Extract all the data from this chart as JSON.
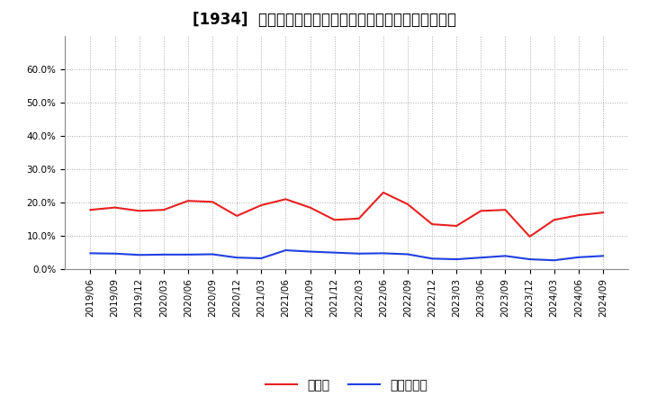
{
  "title": "[1934]  現預金、有利子負債の総資産に対する比率の推移",
  "x_labels": [
    "2019/06",
    "2019/09",
    "2019/12",
    "2020/03",
    "2020/06",
    "2020/09",
    "2020/12",
    "2021/03",
    "2021/06",
    "2021/09",
    "2021/12",
    "2022/03",
    "2022/06",
    "2022/09",
    "2022/12",
    "2023/03",
    "2023/06",
    "2023/09",
    "2023/12",
    "2024/03",
    "2024/06",
    "2024/09"
  ],
  "cash_values": [
    0.178,
    0.185,
    0.175,
    0.178,
    0.205,
    0.202,
    0.16,
    0.192,
    0.21,
    0.185,
    0.148,
    0.152,
    0.23,
    0.195,
    0.135,
    0.13,
    0.175,
    0.178,
    0.098,
    0.148,
    0.162,
    0.17
  ],
  "debt_values": [
    0.048,
    0.047,
    0.043,
    0.044,
    0.044,
    0.045,
    0.035,
    0.033,
    0.057,
    0.053,
    0.05,
    0.047,
    0.048,
    0.045,
    0.032,
    0.03,
    0.035,
    0.04,
    0.03,
    0.027,
    0.036,
    0.04
  ],
  "cash_color": "#e82020",
  "debt_color": "#2040e0",
  "ylim": [
    0.0,
    0.7
  ],
  "yticks": [
    0.0,
    0.1,
    0.2,
    0.3,
    0.4,
    0.5,
    0.6
  ],
  "legend_cash": "現預金",
  "legend_debt": "有利子負債",
  "bg_color": "#ffffff",
  "grid_color": "#aaaaaa",
  "title_fontsize": 12,
  "axis_fontsize": 7.5,
  "legend_fontsize": 10
}
